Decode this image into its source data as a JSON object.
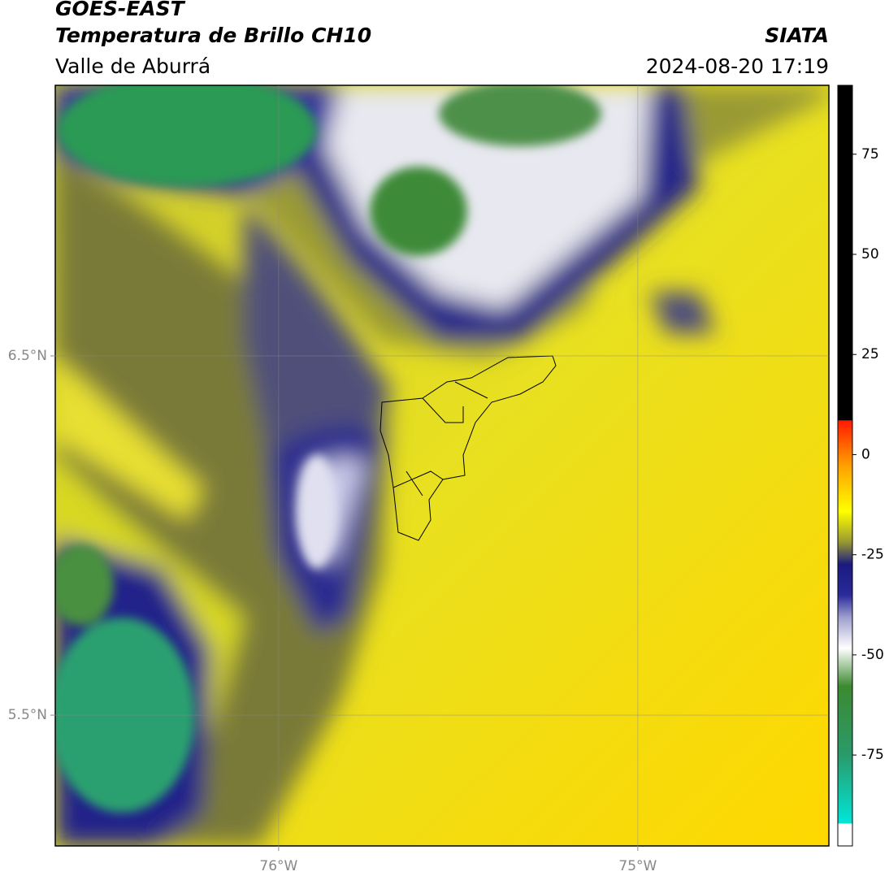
{
  "header": {
    "title": "GOES-EAST",
    "subtitle": "Temperatura de Brillo CH10",
    "region": "Valle de Aburrá",
    "source": "SIATA",
    "datetime": "2024-08-20 17:19"
  },
  "map": {
    "lonlim": [
      -76.622,
      -74.468
    ],
    "latlim": [
      5.136,
      7.253
    ],
    "lat_ticks": [
      {
        "value": 6.5,
        "label": "6.5°N"
      },
      {
        "value": 5.5,
        "label": "5.5°N"
      }
    ],
    "lon_ticks": [
      {
        "value": -76,
        "label": "76°W"
      },
      {
        "value": -75,
        "label": "75°W"
      }
    ]
  },
  "colorbar": {
    "lim": [
      -97.7,
      92.2
    ],
    "ticks": [
      75,
      50,
      25,
      0,
      -25,
      -50,
      -75
    ]
  }
}
